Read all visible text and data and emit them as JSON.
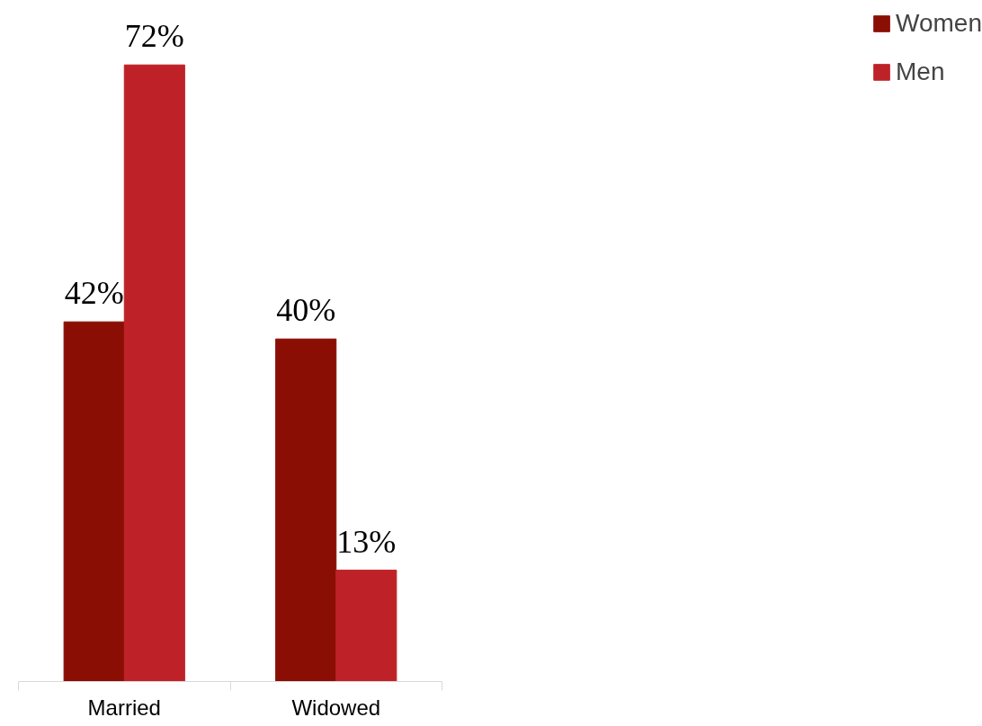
{
  "chart_data": {
    "type": "bar",
    "categories": [
      "Married",
      "Widowed"
    ],
    "series": [
      {
        "name": "Women",
        "color": "#8b0e04",
        "values": [
          42,
          40
        ],
        "value_labels": [
          "42%",
          "40%"
        ]
      },
      {
        "name": "Men",
        "color": "#be2228",
        "values": [
          72,
          13
        ],
        "value_labels": [
          "72%",
          "13%"
        ]
      }
    ],
    "legend": "right",
    "grid": false
  }
}
